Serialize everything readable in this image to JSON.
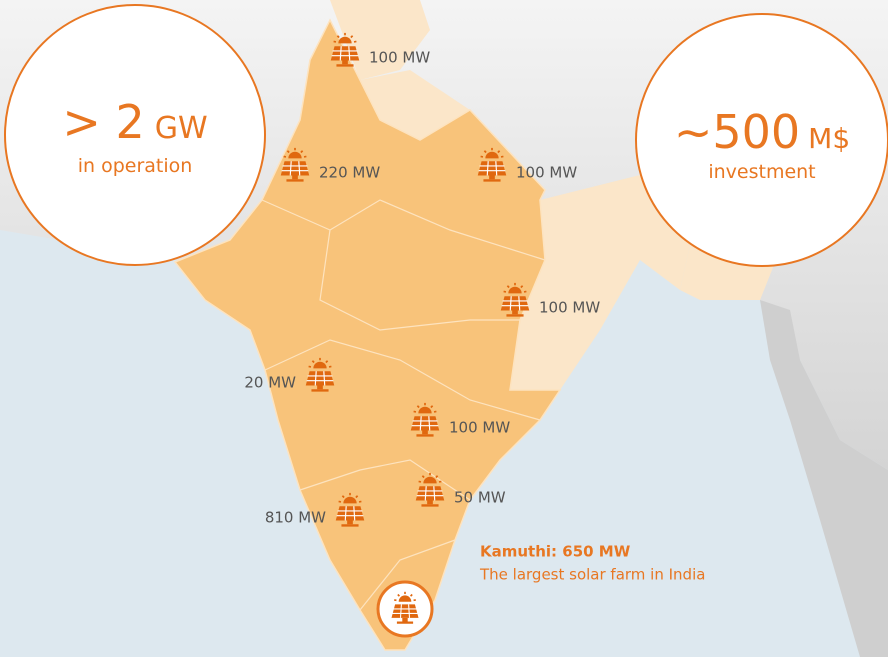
{
  "stats": [
    {
      "value": "> 2",
      "unit": "GW",
      "caption": "in operation"
    },
    {
      "value": "~500",
      "unit": "M$",
      "caption": "investment"
    }
  ],
  "sites": [
    {
      "label": "100 MW"
    },
    {
      "label": "220 MW"
    },
    {
      "label": "100 MW"
    },
    {
      "label": "100 MW"
    },
    {
      "label": "20 MW"
    },
    {
      "label": "100 MW"
    },
    {
      "label": "50 MW"
    },
    {
      "label": "810 MW"
    }
  ],
  "callout": {
    "title": "Kamuthi: 650 MW",
    "text": "The largest solar farm in India"
  }
}
